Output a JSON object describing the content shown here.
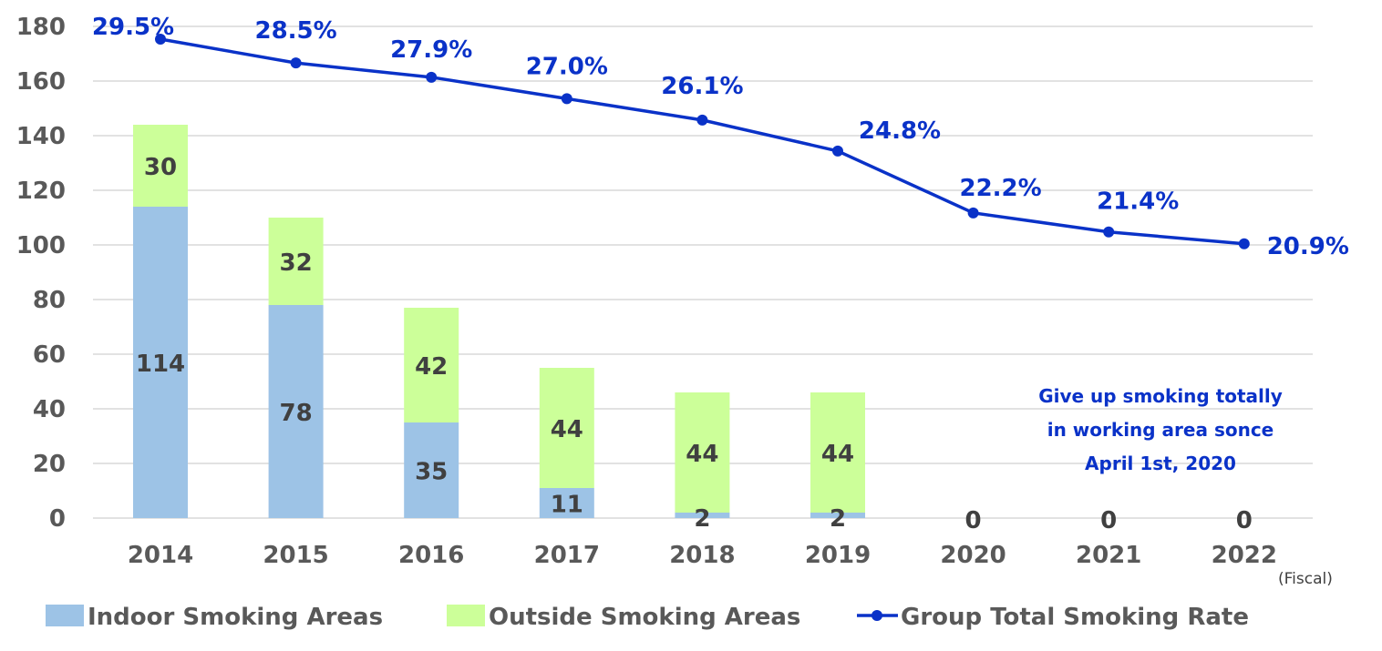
{
  "chart_data": {
    "type": "bar",
    "categories": [
      "2014",
      "2015",
      "2016",
      "2017",
      "2018",
      "2019",
      "2020",
      "2021",
      "2022"
    ],
    "series": [
      {
        "name": "Indoor Smoking Areas",
        "type": "bar",
        "stack": "areas",
        "color": "#9dc3e6",
        "values": [
          114,
          78,
          35,
          11,
          2,
          2,
          0,
          0,
          0
        ]
      },
      {
        "name": "Outside Smoking Areas",
        "type": "bar",
        "stack": "areas",
        "color": "#ccff99",
        "values": [
          30,
          32,
          42,
          44,
          44,
          44,
          0,
          0,
          0
        ]
      },
      {
        "name": "Group Total Smoking Rate",
        "type": "line",
        "color": "#0a32c8",
        "values": [
          29.5,
          28.5,
          27.9,
          27.0,
          26.1,
          24.8,
          22.2,
          21.4,
          20.9
        ],
        "labels": [
          "29.5%",
          "28.5%",
          "27.9%",
          "27.0%",
          "26.1%",
          "24.8%",
          "22.2%",
          "21.4%",
          "20.9%"
        ]
      }
    ],
    "total_labels": [
      "",
      "",
      "",
      "",
      "",
      "",
      "0",
      "0",
      "0"
    ],
    "ylim": [
      0,
      180
    ],
    "yticks": [
      0,
      20,
      40,
      60,
      80,
      100,
      120,
      140,
      160,
      180
    ],
    "grid": true,
    "legend": "bottom",
    "x_unit_label": "(Fiscal)",
    "annotation": [
      "Give up smoking totally",
      "in working area sonce",
      "April 1st, 2020"
    ]
  }
}
